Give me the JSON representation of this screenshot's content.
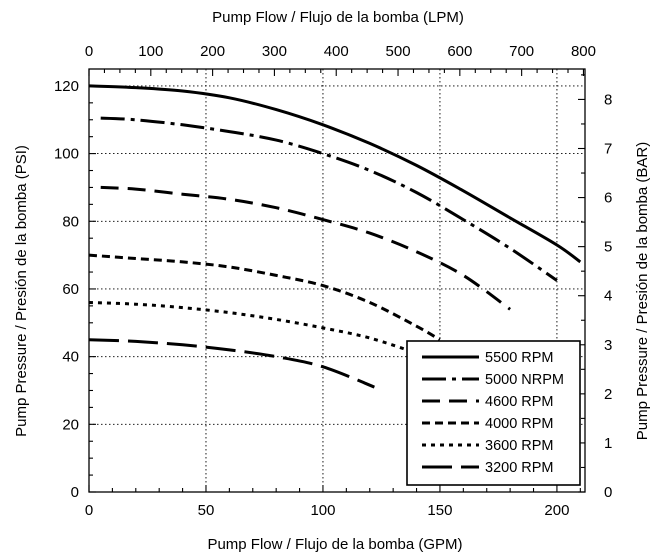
{
  "chart_data": {
    "type": "line",
    "title": "",
    "xlabel": "Pump Flow / Flujo de la bomba (GPM)",
    "ylabel": "Pump Pressure / Presión de la bomba (PSI)",
    "x2label": "Pump Flow / Flujo de la bomba (LPM)",
    "y2label": "Pump Pressure / Presión de la bomba (BAR)",
    "xlim": [
      0,
      212
    ],
    "ylim": [
      0,
      125
    ],
    "x2lim": [
      0,
      802.5
    ],
    "y2lim": [
      0,
      8.62
    ],
    "x_ticks": [
      0,
      50,
      100,
      150,
      200
    ],
    "y_ticks": [
      0,
      20,
      40,
      60,
      80,
      100,
      120
    ],
    "x2_ticks": [
      0,
      100,
      200,
      300,
      400,
      500,
      600,
      700,
      800
    ],
    "y2_ticks": [
      0,
      1,
      2,
      3,
      4,
      5,
      6,
      7,
      8
    ],
    "grid": true,
    "legend_position": "bottom-right",
    "series": [
      {
        "name": "5500 RPM",
        "dash": "none",
        "x": [
          0,
          20,
          40,
          60,
          80,
          100,
          120,
          140,
          160,
          180,
          200,
          210
        ],
        "y": [
          120,
          119.5,
          118.5,
          116.5,
          113,
          108.5,
          103,
          96.5,
          89,
          81,
          73,
          68
        ]
      },
      {
        "name": "5000 NRPM",
        "dash": "longdot",
        "x": [
          5,
          20,
          40,
          60,
          80,
          100,
          120,
          140,
          160,
          180,
          200
        ],
        "y": [
          110.5,
          110,
          108.5,
          106.5,
          104,
          100,
          95,
          88.5,
          80.5,
          72,
          62.5
        ]
      },
      {
        "name": "4600 RPM",
        "dash": "dash",
        "x": [
          5,
          20,
          40,
          60,
          80,
          100,
          120,
          140,
          160,
          180
        ],
        "y": [
          90,
          89.5,
          88,
          86.5,
          84,
          80.5,
          76.5,
          71,
          64,
          54
        ]
      },
      {
        "name": "4000 RPM",
        "dash": "shortdash",
        "x": [
          0,
          20,
          40,
          60,
          80,
          100,
          120,
          140,
          150
        ],
        "y": [
          70,
          69,
          68,
          66.5,
          64,
          61,
          56,
          49,
          45
        ]
      },
      {
        "name": "3600 RPM",
        "dash": "dot",
        "x": [
          0,
          20,
          40,
          60,
          80,
          100,
          120,
          140,
          150
        ],
        "y": [
          56,
          55.5,
          54.5,
          53,
          51,
          48.5,
          45.5,
          41,
          38
        ]
      },
      {
        "name": "3200 RPM",
        "dash": "longdash",
        "x": [
          0,
          20,
          40,
          60,
          80,
          100,
          122
        ],
        "y": [
          45,
          44.5,
          43.5,
          42,
          40,
          37,
          31
        ]
      }
    ]
  }
}
